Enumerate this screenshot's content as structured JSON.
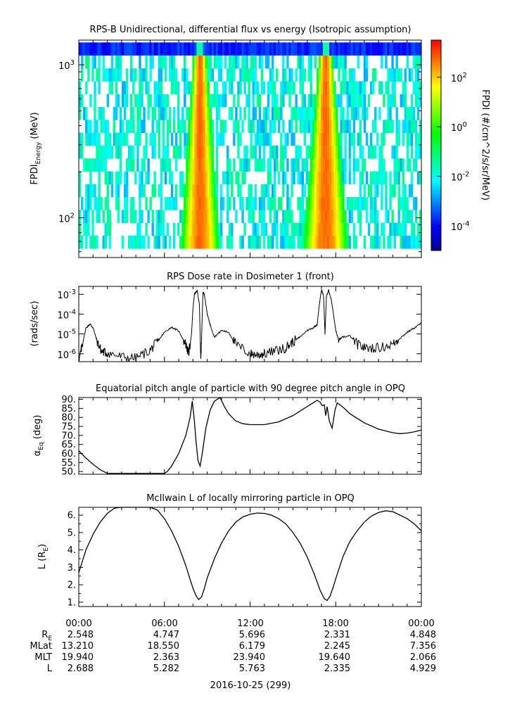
{
  "chart_data": [
    {
      "type": "heatmap",
      "title": "RPS-B  Unidirectional, differential flux vs energy (Isotropic assumption)",
      "ylabel_main": "FPDI",
      "ylabel_sub": "Energy",
      "ylabel_unit": " (MeV)",
      "y_scale": "log",
      "ylim": [
        55,
        1450
      ],
      "y_ticks": [
        {
          "value": 100,
          "base": "10",
          "exp": "2"
        },
        {
          "value": 1000,
          "base": "10",
          "exp": "3"
        }
      ],
      "x_range_hours": [
        0,
        24
      ],
      "colorbar": {
        "label": "FPDI (#/cm^2/s/sr/MeV)",
        "scale": "log",
        "range": [
          -5,
          3.5
        ],
        "ticks": [
          {
            "base": "10",
            "exp": "-4",
            "value": -4
          },
          {
            "base": "10",
            "exp": "-2",
            "value": -2
          },
          {
            "base": "10",
            "exp": "0",
            "value": 0
          },
          {
            "base": "10",
            "exp": "2",
            "value": 2
          }
        ],
        "colors": [
          "#00008c",
          "#0000ff",
          "#0080ff",
          "#00ffff",
          "#00ff80",
          "#00ff00",
          "#80ff00",
          "#ffff00",
          "#ff8000",
          "#ff0000"
        ]
      },
      "belt_passes_hours": [
        8.5,
        17.3
      ]
    },
    {
      "type": "line",
      "title": "RPS  Dose rate in Dosimeter 1 (front)",
      "ylabel": "(rads/sec)",
      "y_scale": "log",
      "ylim": [
        4e-07,
        0.0025
      ],
      "y_ticks": [
        {
          "value": 1e-06,
          "base": "10",
          "exp": "-6"
        },
        {
          "value": 1e-05,
          "base": "10",
          "exp": "-5"
        },
        {
          "value": 0.0001,
          "base": "10",
          "exp": "-4"
        },
        {
          "value": 0.001,
          "base": "10",
          "exp": "-3"
        }
      ],
      "x_range_hours": [
        0,
        24
      ],
      "x": [
        0.0,
        0.2,
        0.5,
        0.8,
        1.0,
        1.3,
        1.6,
        2.0,
        3.0,
        4.0,
        5.0,
        5.5,
        6.0,
        6.5,
        7.0,
        7.5,
        7.7,
        7.9,
        8.0,
        8.1,
        8.3,
        8.45,
        8.55,
        8.7,
        8.8,
        9.0,
        9.2,
        9.5,
        10.0,
        10.5,
        11.0,
        12.0,
        12.5,
        13.0,
        14.0,
        14.5,
        15.0,
        15.5,
        16.0,
        16.4,
        16.7,
        16.85,
        17.0,
        17.15,
        17.25,
        17.35,
        17.5,
        17.7,
        18.0,
        18.2,
        18.5,
        19.0,
        19.5,
        20.0,
        21.0,
        22.0,
        22.5,
        23.0,
        23.5,
        24.0
      ],
      "values": [
        4e-07,
        2e-06,
        2e-05,
        3.2e-05,
        2e-05,
        4e-06,
        1.3e-06,
        1.1e-06,
        7e-07,
        6e-07,
        1.5e-06,
        4e-06,
        1.2e-05,
        2.2e-05,
        1.4e-05,
        3e-06,
        1e-06,
        1e-05,
        0.0002,
        0.001,
        0.0015,
        0.0003,
        4e-07,
        0.0013,
        0.001,
        0.0001,
        3e-05,
        7e-06,
        1.5e-05,
        1.2e-05,
        3e-06,
        1e-06,
        9e-07,
        1e-06,
        1.5e-06,
        2e-06,
        4e-06,
        7e-06,
        1.5e-05,
        2e-05,
        3e-05,
        0.0003,
        0.0017,
        0.0008,
        1e-05,
        0.0008,
        0.0016,
        0.0005,
        1.5e-05,
        5e-06,
        7e-06,
        8e-06,
        3e-06,
        2e-06,
        2e-06,
        3e-06,
        6e-06,
        1.2e-05,
        2e-05,
        3.5e-05
      ]
    },
    {
      "type": "line",
      "title": "Equatorial pitch angle of particle with 90 degree pitch angle in OPQ",
      "ylabel_main": "α",
      "ylabel_sub": "Eq",
      "ylabel_unit": " (deg)",
      "ylim": [
        48.5,
        91
      ],
      "y_ticks": [
        50,
        55,
        60,
        65,
        70,
        75,
        80,
        85,
        90
      ],
      "x_range_hours": [
        0,
        24
      ],
      "x": [
        0.0,
        0.5,
        1.0,
        1.5,
        2.0,
        3.0,
        4.0,
        5.0,
        6.0,
        6.2,
        6.5,
        7.0,
        7.5,
        7.8,
        7.95,
        8.1,
        8.2,
        8.35,
        8.5,
        8.65,
        8.9,
        9.2,
        9.5,
        9.9,
        10.2,
        10.5,
        11.0,
        11.5,
        12.0,
        13.0,
        14.0,
        15.0,
        16.0,
        16.5,
        16.7,
        16.9,
        17.05,
        17.2,
        17.3,
        17.4,
        17.55,
        17.75,
        17.95,
        18.1,
        18.3,
        18.6,
        19.0,
        20.0,
        21.0,
        22.0,
        22.5,
        23.0,
        23.5,
        24.0
      ],
      "values": [
        61.5,
        57.5,
        54.0,
        51.0,
        49.0,
        49.0,
        49.0,
        49.0,
        49.0,
        50.0,
        53.0,
        60.0,
        70.0,
        80.0,
        89.0,
        78.0,
        68.0,
        56.0,
        53.0,
        60.0,
        74.0,
        84.0,
        89.0,
        91.0,
        86.0,
        82.0,
        78.0,
        76.5,
        76.0,
        76.0,
        77.5,
        81.0,
        86.0,
        88.5,
        89.5,
        88.5,
        86.5,
        87.0,
        81.0,
        86.0,
        78.0,
        74.0,
        84.0,
        88.0,
        87.0,
        85.0,
        82.0,
        77.0,
        73.5,
        71.5,
        71.0,
        71.3,
        72.0,
        73.0
      ]
    },
    {
      "type": "line",
      "title": "McIlwain L of locally mirroring particle in OPQ",
      "ylabel_main": "L (R",
      "ylabel_sub": "E",
      "ylabel_unit": ")",
      "ylim": [
        0.75,
        6.45
      ],
      "y_ticks": [
        1,
        2,
        3,
        4,
        5,
        6
      ],
      "x_range_hours": [
        0,
        24
      ],
      "x": [
        0.0,
        0.5,
        1.0,
        1.5,
        2.0,
        2.5,
        3.0,
        4.0,
        5.0,
        5.5,
        6.0,
        6.5,
        7.0,
        7.5,
        7.8,
        8.0,
        8.2,
        8.4,
        8.6,
        8.8,
        9.0,
        9.5,
        10.0,
        10.5,
        11.0,
        11.5,
        12.0,
        12.5,
        13.0,
        13.5,
        14.0,
        14.5,
        15.0,
        15.5,
        16.0,
        16.5,
        16.9,
        17.2,
        17.4,
        17.6,
        17.8,
        18.1,
        18.5,
        19.0,
        19.5,
        20.0,
        20.5,
        21.0,
        21.5,
        22.0,
        22.5,
        23.0,
        23.5,
        24.0
      ],
      "values": [
        2.7,
        4.0,
        4.9,
        5.6,
        6.1,
        6.4,
        6.6,
        6.9,
        6.6,
        6.3,
        5.8,
        5.1,
        4.2,
        3.1,
        2.3,
        1.8,
        1.4,
        1.15,
        1.3,
        1.8,
        2.4,
        3.5,
        4.4,
        5.1,
        5.6,
        5.9,
        6.05,
        6.12,
        6.1,
        6.0,
        5.8,
        5.5,
        5.0,
        4.4,
        3.6,
        2.6,
        1.7,
        1.2,
        1.1,
        1.35,
        1.8,
        2.6,
        3.6,
        4.5,
        5.1,
        5.6,
        5.95,
        6.15,
        6.25,
        6.2,
        6.0,
        5.8,
        5.5,
        5.1
      ]
    }
  ],
  "x_axis": {
    "tick_labels": [
      "00:00",
      "06:00",
      "12:00",
      "18:00",
      "00:00"
    ],
    "row_labels": [
      {
        "main": "R",
        "sub": "E"
      },
      {
        "main": "MLat",
        "sub": ""
      },
      {
        "main": "MLT",
        "sub": ""
      },
      {
        "main": "L",
        "sub": ""
      }
    ],
    "rows": [
      [
        "2.548",
        "4.747",
        "5.696",
        "2.331",
        "4.848"
      ],
      [
        "13.210",
        "18.550",
        "6.179",
        "2.245",
        "7.356"
      ],
      [
        "19.940",
        "2.363",
        "23.940",
        "19.640",
        "2.066"
      ],
      [
        "2.688",
        "5.282",
        "5.763",
        "2.335",
        "4.929"
      ]
    ],
    "date_label": "2016-10-25 (299)"
  }
}
